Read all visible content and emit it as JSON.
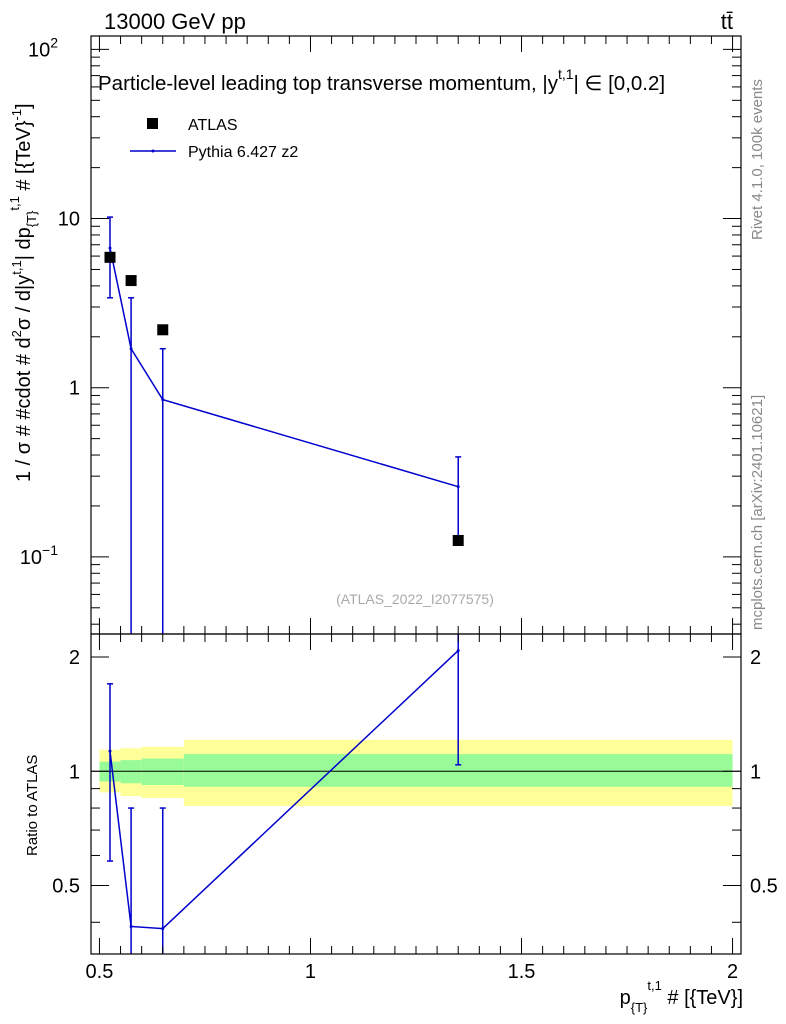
{
  "header": {
    "left": "13000 GeV pp",
    "right": "tt̄"
  },
  "side_labels": {
    "rivet": "Rivet 4.1.0,  100k events",
    "mcplots": "mcplots.cern.ch [arXiv:2401.10621]"
  },
  "chart_data": [
    {
      "type": "scatter",
      "title": "Particle-level leading top transverse momentum, |y^{t,1}| ∈ [0,0.2]",
      "title_parts": {
        "main": "Particle-level leading top transverse momentum, |",
        "y": "y",
        "sup": "t,1",
        "tail": "| ∈ [0,0.2]"
      },
      "analysis_id": "(ATLAS_2022_I2077575)",
      "ylabel": "1 / σ # #cdot # d²σ / d|y^{t,1}| dp_{T}^{t,1} # [{TeV}^{-1}]",
      "ylabel_parts": {
        "a": "1 / σ # #cdot # d",
        "a_sup": "2",
        "b": "σ / d|y",
        "b_sup": "t,1",
        "c": "| dp",
        "c_sub": "{T}",
        "c_sup": "t,1",
        "d": " # [{TeV}",
        "d_sup": "-1",
        "e": "]"
      },
      "xlabel": "p_{T}^{t,1} # [{TeV}]",
      "xlabel_parts": {
        "p": "p",
        "sub": "{T}",
        "sup": "t,1",
        "rest": " # [{TeV}]"
      },
      "xlim": [
        0.48,
        2.02
      ],
      "ylim": [
        0.035,
        120
      ],
      "yscale": "log",
      "legend_placement": "top-left",
      "ticks": {
        "y_main": [
          {
            "value": 0.1,
            "base": "10",
            "exp": "−1"
          },
          {
            "value": 1,
            "base": "1",
            "exp": ""
          },
          {
            "value": 10,
            "base": "10",
            "exp": ""
          },
          {
            "value": 100,
            "base": "10",
            "exp": "2"
          }
        ]
      },
      "series": [
        {
          "name": "ATLAS",
          "color": "#000000",
          "marker": "square",
          "points": [
            {
              "x": 0.525,
              "y": 5.9
            },
            {
              "x": 0.575,
              "y": 4.3
            },
            {
              "x": 0.65,
              "y": 2.2
            },
            {
              "x": 1.35,
              "y": 0.125
            }
          ]
        },
        {
          "name": "Pythia 6.427 z2",
          "color": "#0000cc",
          "marker": "line",
          "points": [
            {
              "x": 0.525,
              "y": 6.7,
              "ylo": 3.4,
              "yhi": 10.2
            },
            {
              "x": 0.575,
              "y": 1.7,
              "ylo": 0.035,
              "yhi": 3.4
            },
            {
              "x": 0.65,
              "y": 0.85,
              "ylo": 0.035,
              "yhi": 1.7
            },
            {
              "x": 1.35,
              "y": 0.26,
              "ylo": 0.13,
              "yhi": 0.39
            }
          ]
        }
      ]
    },
    {
      "type": "line",
      "ylabel": "Ratio to ATLAS",
      "xlim": [
        0.48,
        2.02
      ],
      "ylim": [
        0.33,
        2.3
      ],
      "yscale": "log",
      "x_ticks": [
        {
          "value": 0.5,
          "label": "0.5"
        },
        {
          "value": 1,
          "label": "1"
        },
        {
          "value": 1.5,
          "label": "1.5"
        },
        {
          "value": 2,
          "label": "2"
        }
      ],
      "y_ticks": [
        {
          "value": 0.5,
          "label": "0.5"
        },
        {
          "value": 1,
          "label": "1"
        },
        {
          "value": 2,
          "label": "2"
        }
      ],
      "bands": [
        {
          "x0": 0.5,
          "x1": 0.55,
          "inner": [
            0.94,
            1.06
          ],
          "outer": [
            0.88,
            1.14
          ]
        },
        {
          "x0": 0.55,
          "x1": 0.6,
          "inner": [
            0.93,
            1.07
          ],
          "outer": [
            0.86,
            1.15
          ]
        },
        {
          "x0": 0.6,
          "x1": 0.7,
          "inner": [
            0.92,
            1.08
          ],
          "outer": [
            0.85,
            1.16
          ]
        },
        {
          "x0": 0.7,
          "x1": 2.0,
          "inner": [
            0.91,
            1.11
          ],
          "outer": [
            0.81,
            1.21
          ]
        }
      ],
      "band_colors": {
        "inner": "#98fb98",
        "outer": "#ffff99"
      },
      "series": [
        {
          "name": "Pythia 6.427 z2",
          "color": "#0000cc",
          "points": [
            {
              "x": 0.525,
              "y": 1.13,
              "ylo": 0.58,
              "yhi": 1.7
            },
            {
              "x": 0.575,
              "y": 0.39,
              "ylo": 0.2,
              "yhi": 0.8
            },
            {
              "x": 0.65,
              "y": 0.385,
              "ylo": 0.2,
              "yhi": 0.8
            },
            {
              "x": 1.35,
              "y": 2.08,
              "ylo": 1.04,
              "yhi": 3.12
            }
          ]
        }
      ]
    }
  ]
}
